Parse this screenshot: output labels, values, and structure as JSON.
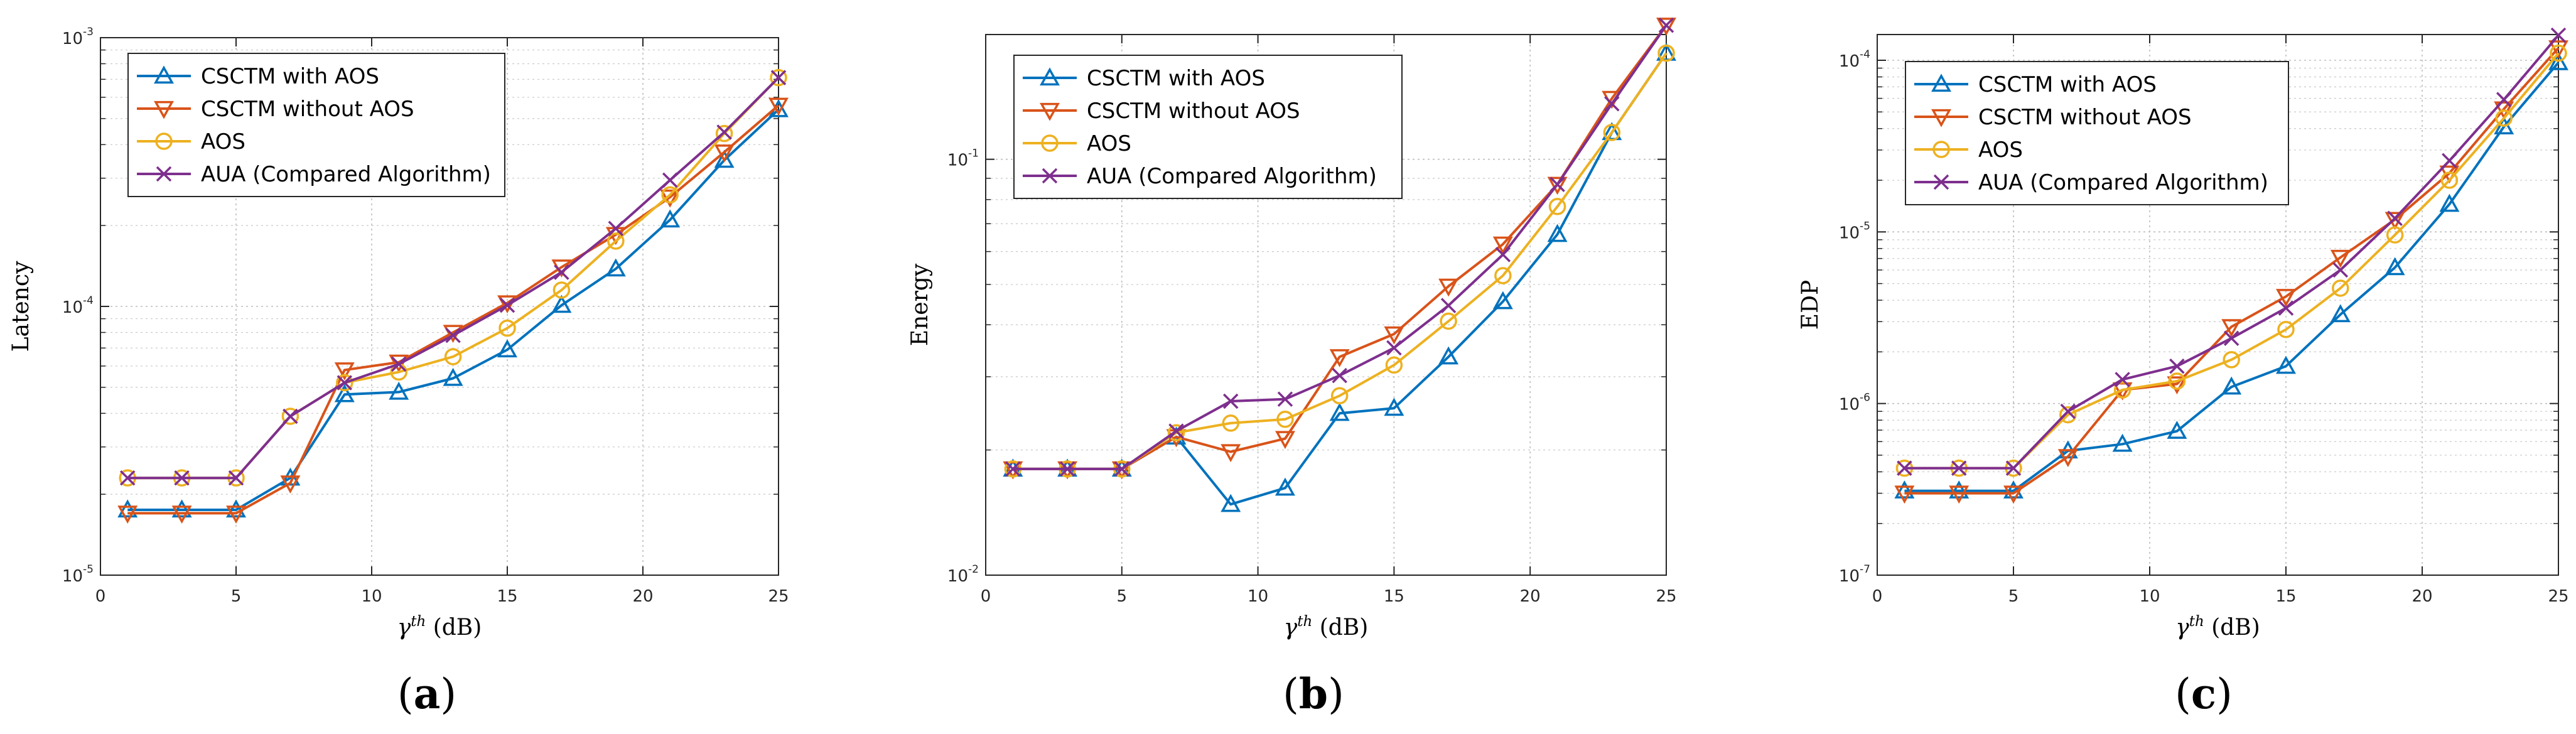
{
  "colors": {
    "series": [
      "#0072BD",
      "#D95319",
      "#EDB120",
      "#7E2F8E"
    ],
    "grid": "#dcdcdc",
    "axis": "#262626"
  },
  "legend_labels": [
    "CSCTM with AOS",
    "CSCTM without AOS",
    "AOS",
    "AUA (Compared Algorithm)"
  ],
  "markers": [
    "triangle-up",
    "triangle-down",
    "circle",
    "x"
  ],
  "chart_data": [
    {
      "type": "line",
      "panel_label": "(a)",
      "panel_letter": "a",
      "title": "",
      "ylabel": "Latency",
      "xlabel": "γ^th (dB)",
      "xlabel_symbol": "γ",
      "xlabel_sup": "th",
      "xlabel_unit": "(dB)",
      "yscale": "log",
      "xlim": [
        0,
        25
      ],
      "ylim_exp": [
        -5,
        -3
      ],
      "xticks": [
        0,
        5,
        10,
        15,
        20,
        25
      ],
      "ytick_labels": [
        {
          "exp": -5,
          "base": "10",
          "sup": "-5"
        },
        {
          "exp": -4,
          "base": "10",
          "sup": "-4"
        },
        {
          "exp": -3,
          "base": "10",
          "sup": "-3"
        }
      ],
      "legend_position": "top-left",
      "x": [
        1,
        3,
        5,
        7,
        9,
        11,
        13,
        15,
        17,
        19,
        21,
        23,
        25
      ],
      "series": [
        {
          "name": "CSCTM with AOS",
          "values": [
            1.75e-05,
            1.75e-05,
            1.75e-05,
            2.3e-05,
            4.7e-05,
            4.8e-05,
            5.4e-05,
            6.9e-05,
            0.000101,
            0.000138,
            0.00021,
            0.00035,
            0.00054
          ]
        },
        {
          "name": "CSCTM without AOS",
          "values": [
            1.7e-05,
            1.7e-05,
            1.7e-05,
            2.2e-05,
            5.8e-05,
            6.2e-05,
            8e-05,
            0.000103,
            0.00014,
            0.000185,
            0.000255,
            0.000375,
            0.00056
          ]
        },
        {
          "name": "AOS",
          "values": [
            2.3e-05,
            2.3e-05,
            2.3e-05,
            3.9e-05,
            5.2e-05,
            5.7e-05,
            6.5e-05,
            8.3e-05,
            0.000115,
            0.000175,
            0.00026,
            0.00044,
            0.00071
          ]
        },
        {
          "name": "AUA (Compared Algorithm)",
          "values": [
            2.3e-05,
            2.3e-05,
            2.3e-05,
            3.9e-05,
            5.2e-05,
            6.1e-05,
            7.8e-05,
            0.000101,
            0.000134,
            0.000195,
            0.000295,
            0.000445,
            0.00071
          ]
        }
      ]
    },
    {
      "type": "line",
      "panel_label": "(b)",
      "panel_letter": "b",
      "title": "",
      "ylabel": "Energy",
      "xlabel": "γ^th (dB)",
      "xlabel_symbol": "γ",
      "xlabel_sup": "th",
      "xlabel_unit": "(dB)",
      "yscale": "log",
      "xlim": [
        0,
        25
      ],
      "ylim_exp": [
        -2,
        -0.7
      ],
      "xticks": [
        0,
        5,
        10,
        15,
        20,
        25
      ],
      "ytick_labels": [
        {
          "exp": -2,
          "base": "10",
          "sup": "-2"
        },
        {
          "exp": -1,
          "base": "10",
          "sup": "-1"
        }
      ],
      "legend_position": "top-left",
      "x": [
        1,
        3,
        5,
        7,
        9,
        11,
        13,
        15,
        17,
        19,
        21,
        23,
        25
      ],
      "series": [
        {
          "name": "CSCTM with AOS",
          "values": [
            0.018,
            0.018,
            0.018,
            0.0215,
            0.0148,
            0.0162,
            0.0245,
            0.0252,
            0.0335,
            0.0455,
            0.066,
            0.116,
            0.18
          ]
        },
        {
          "name": "CSCTM without AOS",
          "values": [
            0.018,
            0.018,
            0.018,
            0.0215,
            0.0198,
            0.0213,
            0.0335,
            0.038,
            0.0495,
            0.0625,
            0.087,
            0.14,
            0.21
          ]
        },
        {
          "name": "AOS",
          "values": [
            0.018,
            0.018,
            0.018,
            0.022,
            0.0232,
            0.0237,
            0.027,
            0.032,
            0.0408,
            0.0525,
            0.077,
            0.116,
            0.18
          ]
        },
        {
          "name": "AUA (Compared Algorithm)",
          "values": [
            0.018,
            0.018,
            0.018,
            0.0222,
            0.0262,
            0.0265,
            0.0302,
            0.0352,
            0.0445,
            0.059,
            0.087,
            0.136,
            0.21
          ]
        }
      ]
    },
    {
      "type": "line",
      "panel_label": "(c)",
      "panel_letter": "c",
      "title": "",
      "ylabel": "EDP",
      "xlabel": "γ^th (dB)",
      "xlabel_symbol": "γ",
      "xlabel_sup": "th",
      "xlabel_unit": "(dB)",
      "yscale": "log",
      "xlim": [
        0,
        25
      ],
      "ylim_exp": [
        -7,
        -3.85
      ],
      "xticks": [
        0,
        5,
        10,
        15,
        20,
        25
      ],
      "ytick_labels": [
        {
          "exp": -7,
          "base": "10",
          "sup": "-7"
        },
        {
          "exp": -6,
          "base": "10",
          "sup": "-6"
        },
        {
          "exp": -5,
          "base": "10",
          "sup": "-5"
        },
        {
          "exp": -4,
          "base": "10",
          "sup": "-4"
        }
      ],
      "legend_position": "top-left",
      "x": [
        1,
        3,
        5,
        7,
        9,
        11,
        13,
        15,
        17,
        19,
        21,
        23,
        25
      ],
      "series": [
        {
          "name": "CSCTM with AOS",
          "values": [
            3.1e-07,
            3.1e-07,
            3.1e-07,
            5.3e-07,
            5.8e-07,
            6.9e-07,
            1.25e-06,
            1.65e-06,
            3.3e-06,
            6.2e-06,
            1.45e-05,
            4.1e-05,
            9.7e-05
          ]
        },
        {
          "name": "CSCTM without AOS",
          "values": [
            3e-07,
            3e-07,
            3e-07,
            4.9e-07,
            1.2e-06,
            1.3e-06,
            2.8e-06,
            4.2e-06,
            7.1e-06,
            1.18e-05,
            2.2e-05,
            5.2e-05,
            0.000118
          ]
        },
        {
          "name": "AOS",
          "values": [
            4.2e-07,
            4.2e-07,
            4.2e-07,
            8.6e-07,
            1.2e-06,
            1.35e-06,
            1.8e-06,
            2.7e-06,
            4.7e-06,
            9.6e-06,
            2e-05,
            4.6e-05,
            0.00011
          ]
        },
        {
          "name": "AUA (Compared Algorithm)",
          "values": [
            4.2e-07,
            4.2e-07,
            4.2e-07,
            9e-07,
            1.38e-06,
            1.65e-06,
            2.4e-06,
            3.6e-06,
            6e-06,
            1.2e-05,
            2.6e-05,
            5.9e-05,
            0.00014
          ]
        }
      ]
    }
  ]
}
